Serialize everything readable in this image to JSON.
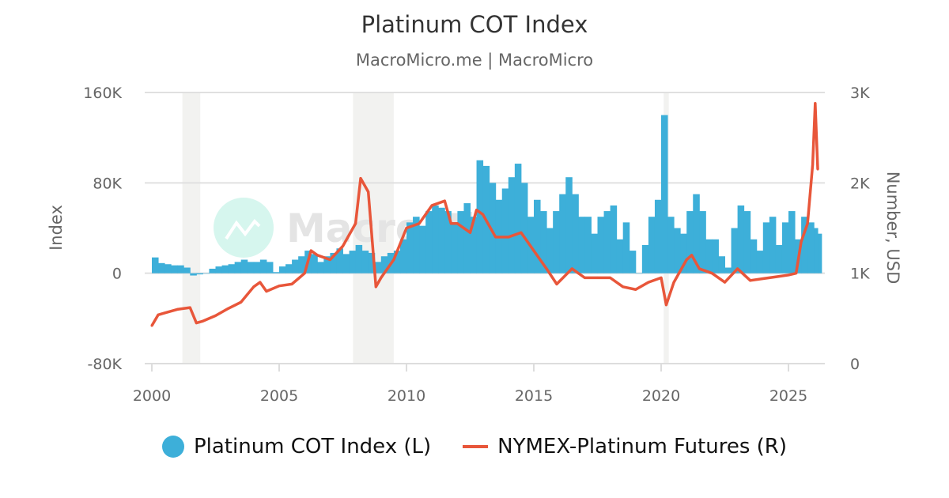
{
  "header": {
    "title": "Platinum COT Index",
    "subtitle": "MacroMicro.me | MacroMicro"
  },
  "watermark": {
    "text": "MacroMicro"
  },
  "chart_data": {
    "type": "area+line",
    "title": "Platinum COT Index",
    "subtitle": "MacroMicro.me | MacroMicro",
    "y_left": {
      "label": "Index",
      "ylim": [
        -80000,
        160000
      ],
      "ticks": [
        -80000,
        0,
        80000,
        160000
      ],
      "tick_labels": [
        "-80K",
        "0",
        "80K",
        "160K"
      ]
    },
    "y_right": {
      "label": "Number, USD",
      "ylim": [
        0,
        3000
      ],
      "ticks": [
        0,
        1000,
        2000,
        3000
      ],
      "tick_labels": [
        "0",
        "1K",
        "2K",
        "3K"
      ]
    },
    "x": {
      "ticks": [
        2000,
        2005,
        2010,
        2015,
        2020,
        2025
      ],
      "tick_labels": [
        "2000",
        "2005",
        "2010",
        "2015",
        "2020",
        "2025"
      ],
      "xlim": [
        1999.7,
        2026.6
      ]
    },
    "grid": true,
    "legend_placement": "bottom",
    "shaded_periods": [
      [
        2001.2,
        2001.9
      ],
      [
        2007.9,
        2009.5
      ],
      [
        2020.1,
        2020.3
      ]
    ],
    "series": [
      {
        "name": "Platinum COT Index (L)",
        "axis": "left",
        "type": "area",
        "color": "#3dafd9",
        "x": [
          2000,
          2000.25,
          2000.5,
          2000.75,
          2001,
          2001.25,
          2001.5,
          2001.75,
          2002,
          2002.25,
          2002.5,
          2002.75,
          2003,
          2003.25,
          2003.5,
          2003.75,
          2004,
          2004.25,
          2004.5,
          2004.75,
          2005,
          2005.25,
          2005.5,
          2005.75,
          2006,
          2006.25,
          2006.5,
          2006.75,
          2007,
          2007.25,
          2007.5,
          2007.75,
          2008,
          2008.25,
          2008.5,
          2008.75,
          2009,
          2009.25,
          2009.5,
          2009.75,
          2010,
          2010.25,
          2010.5,
          2010.75,
          2011,
          2011.25,
          2011.5,
          2011.75,
          2012,
          2012.25,
          2012.5,
          2012.75,
          2013,
          2013.25,
          2013.5,
          2013.75,
          2014,
          2014.25,
          2014.5,
          2014.75,
          2015,
          2015.25,
          2015.5,
          2015.75,
          2016,
          2016.25,
          2016.5,
          2016.75,
          2017,
          2017.25,
          2017.5,
          2017.75,
          2018,
          2018.25,
          2018.5,
          2018.75,
          2019,
          2019.25,
          2019.5,
          2019.75,
          2020,
          2020.25,
          2020.5,
          2020.75,
          2021,
          2021.25,
          2021.5,
          2021.75,
          2022,
          2022.25,
          2022.5,
          2022.75,
          2023,
          2023.25,
          2023.5,
          2023.75,
          2024,
          2024.25,
          2024.5,
          2024.75,
          2025,
          2025.25,
          2025.5,
          2025.75,
          2026,
          2026.15
        ],
        "values": [
          14000,
          9000,
          8000,
          7000,
          7000,
          5000,
          -2000,
          -1000,
          0,
          4000,
          6000,
          7000,
          8000,
          10000,
          12000,
          10000,
          10000,
          12000,
          10000,
          1000,
          6000,
          8000,
          12000,
          15000,
          20000,
          17000,
          10000,
          15000,
          18000,
          22000,
          17000,
          20000,
          25000,
          20000,
          18000,
          10000,
          15000,
          18000,
          20000,
          30000,
          45000,
          50000,
          42000,
          55000,
          60000,
          58000,
          55000,
          45000,
          55000,
          62000,
          50000,
          100000,
          95000,
          80000,
          65000,
          75000,
          85000,
          97000,
          80000,
          50000,
          65000,
          55000,
          40000,
          55000,
          70000,
          85000,
          70000,
          50000,
          50000,
          35000,
          50000,
          55000,
          60000,
          30000,
          45000,
          20000,
          0,
          25000,
          50000,
          65000,
          140000,
          50000,
          40000,
          35000,
          55000,
          70000,
          55000,
          30000,
          30000,
          15000,
          5000,
          40000,
          60000,
          55000,
          30000,
          20000,
          45000,
          50000,
          25000,
          45000,
          55000,
          30000,
          50000,
          45000,
          40000,
          35000
        ]
      },
      {
        "name": "NYMEX-Platinum Futures (R)",
        "axis": "right",
        "type": "line",
        "color": "#e8563a",
        "x": [
          2000,
          2000.25,
          2000.5,
          2001,
          2001.5,
          2001.75,
          2002,
          2002.5,
          2003,
          2003.5,
          2004,
          2004.25,
          2004.5,
          2005,
          2005.5,
          2006,
          2006.25,
          2006.5,
          2007,
          2007.5,
          2008,
          2008.2,
          2008.5,
          2008.8,
          2009,
          2009.5,
          2010,
          2010.5,
          2011,
          2011.5,
          2011.75,
          2012,
          2012.5,
          2012.75,
          2013,
          2013.5,
          2014,
          2014.5,
          2015,
          2015.5,
          2015.9,
          2016.5,
          2017,
          2017.5,
          2018,
          2018.5,
          2019,
          2019.5,
          2020,
          2020.2,
          2020.5,
          2021,
          2021.2,
          2021.5,
          2022,
          2022.5,
          2023,
          2023.5,
          2024,
          2024.5,
          2025,
          2025.3,
          2025.5,
          2025.75,
          2025.95,
          2026.05,
          2026.15
        ],
        "values": [
          420,
          540,
          560,
          600,
          620,
          450,
          470,
          530,
          610,
          680,
          850,
          900,
          800,
          860,
          880,
          1000,
          1250,
          1200,
          1150,
          1300,
          1550,
          2050,
          1900,
          850,
          950,
          1150,
          1500,
          1550,
          1750,
          1800,
          1550,
          1550,
          1450,
          1700,
          1650,
          1400,
          1400,
          1450,
          1250,
          1050,
          880,
          1050,
          950,
          950,
          950,
          850,
          820,
          900,
          950,
          650,
          900,
          1150,
          1200,
          1050,
          1000,
          900,
          1050,
          920,
          940,
          960,
          980,
          1000,
          1350,
          1550,
          2200,
          2880,
          2150
        ]
      }
    ]
  }
}
